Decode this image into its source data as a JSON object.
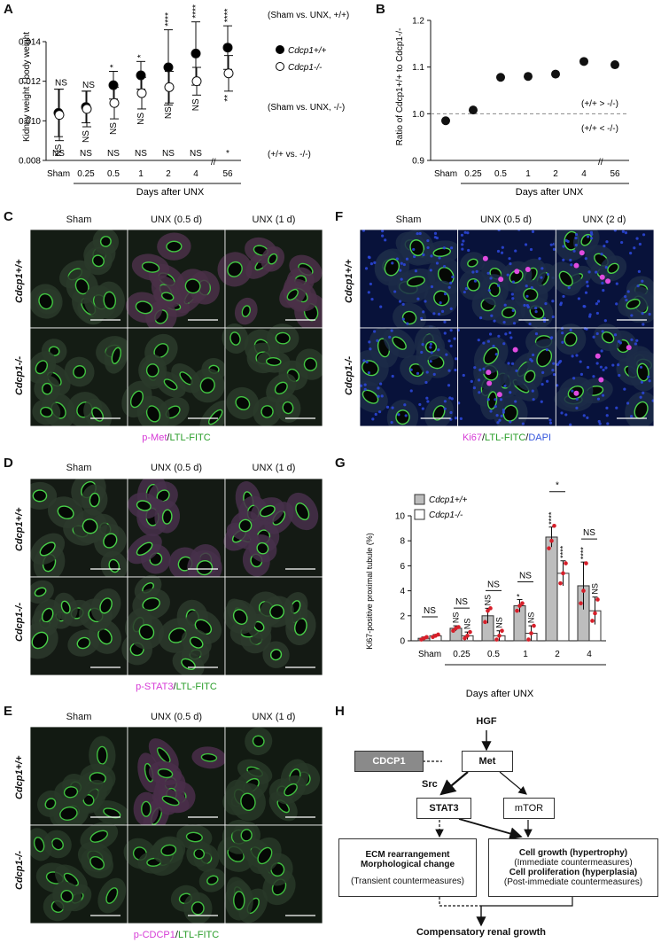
{
  "panels": {
    "A": "A",
    "B": "B",
    "C": "C",
    "D": "D",
    "E": "E",
    "F": "F",
    "G": "G",
    "H": "H"
  },
  "chart_a": {
    "type": "scatter",
    "ylabel": "Kidney weight / body weight",
    "xlabel": "Days after UNX",
    "categories": [
      "Sham",
      "0.25",
      "0.5",
      "1",
      "2",
      "4",
      "56"
    ],
    "ylim": [
      0.008,
      0.014
    ],
    "yticks": [
      "0.008",
      "0.010",
      "0.012",
      "0.014"
    ],
    "series": [
      {
        "name": "Cdcp1+/+",
        "fill": "#000000",
        "values": [
          0.0104,
          0.0107,
          0.0118,
          0.0123,
          0.0127,
          0.0134,
          0.0137
        ],
        "err": [
          0.0012,
          0.0008,
          0.0007,
          0.0007,
          0.0019,
          0.0016,
          0.0011
        ]
      },
      {
        "name": "Cdcp1-/-",
        "fill": "#ffffff",
        "values": [
          0.0103,
          0.0106,
          0.0109,
          0.0114,
          0.0117,
          0.012,
          0.0124
        ],
        "err": [
          0.0013,
          0.0009,
          0.0008,
          0.0008,
          0.0008,
          0.0007,
          0.0009
        ]
      }
    ],
    "sig_top": [
      "NS",
      "NS",
      "*",
      "*",
      "****",
      "****",
      "****"
    ],
    "sig_mid": [
      "NS",
      "NS",
      "NS",
      "NS",
      "NS",
      "NS",
      "**"
    ],
    "sig_bottom": [
      "NS",
      "NS",
      "NS",
      "NS",
      "NS",
      "NS",
      "*"
    ],
    "row_labels": [
      "(Sham vs. UNX, +/+)",
      "(Sham vs. UNX, -/-)",
      "(+/+ vs. -/-)"
    ]
  },
  "chart_b": {
    "type": "scatter",
    "ylabel": "Ratio of Cdcp1+/+ to Cdcp1-/-",
    "xlabel": "Days after UNX",
    "categories": [
      "Sham",
      "0.25",
      "0.5",
      "1",
      "2",
      "4",
      "56"
    ],
    "values": [
      0.985,
      1.008,
      1.078,
      1.08,
      1.085,
      1.112,
      1.105
    ],
    "ylim": [
      0.9,
      1.2
    ],
    "yticks": [
      "0.9",
      "1.0",
      "1.1",
      "1.2"
    ],
    "ref_line": 1.0,
    "annot_above": "(+/+ > -/-)",
    "annot_below": "(+/+ < -/-)"
  },
  "panel_c": {
    "cols": [
      "Sham",
      "UNX (0.5 d)",
      "UNX (1 d)"
    ],
    "rows": [
      "Cdcp1+/+",
      "Cdcp1-/-"
    ],
    "stain_a": "p-Met",
    "sep": "/",
    "stain_b": "LTL-FITC"
  },
  "panel_d": {
    "cols": [
      "Sham",
      "UNX (0.5 d)",
      "UNX (1 d)"
    ],
    "rows": [
      "Cdcp1+/+",
      "Cdcp1-/-"
    ],
    "stain_a": "p-STAT3",
    "sep": "/",
    "stain_b": "LTL-FITC"
  },
  "panel_e": {
    "cols": [
      "Sham",
      "UNX (0.5 d)",
      "UNX (1 d)"
    ],
    "rows": [
      "Cdcp1+/+",
      "Cdcp1-/-"
    ],
    "stain_a": "p-CDCP1",
    "sep": "/",
    "stain_b": "LTL-FITC"
  },
  "panel_f": {
    "cols": [
      "Sham",
      "UNX (0.5 d)",
      "UNX (2 d)"
    ],
    "rows": [
      "Cdcp1+/+",
      "Cdcp1-/-"
    ],
    "stain_a": "Ki67",
    "sep": "/",
    "stain_b": "LTL-FITC",
    "sep2": "/",
    "stain_c": "DAPI"
  },
  "chart_g": {
    "type": "bar",
    "ylabel": "Ki67-positive proximal tubule (%)",
    "xlabel": "Days after UNX",
    "categories": [
      "Sham",
      "0.25",
      "0.5",
      "1",
      "2",
      "4"
    ],
    "ylim": [
      0,
      10
    ],
    "yticks": [
      "0",
      "2",
      "4",
      "6",
      "8",
      "10"
    ],
    "series": [
      {
        "name": "Cdcp1+/+",
        "fill": "#bdbdbd",
        "values": [
          0.2,
          1.0,
          2.0,
          2.8,
          8.3,
          4.4
        ],
        "err": [
          0.1,
          0.2,
          0.6,
          0.5,
          0.8,
          1.9
        ],
        "points": [
          [
            0.1,
            0.2,
            0.3
          ],
          [
            0.8,
            1.0,
            1.1
          ],
          [
            1.5,
            2.4,
            2.6
          ],
          [
            2.4,
            2.8,
            3.0
          ],
          [
            7.4,
            8.0,
            9.2
          ],
          [
            3.0,
            4.0,
            6.2
          ]
        ]
      },
      {
        "name": "Cdcp1-/-",
        "fill": "#ffffff",
        "values": [
          0.4,
          0.4,
          0.4,
          0.6,
          5.4,
          2.4
        ],
        "err": [
          0.1,
          0.3,
          0.4,
          0.6,
          1.0,
          1.1
        ],
        "points": [
          [
            0.3,
            0.4,
            0.5
          ],
          [
            0.2,
            0.4,
            0.7
          ],
          [
            0.1,
            0.4,
            0.8
          ],
          [
            0.1,
            0.6,
            1.2
          ],
          [
            4.6,
            5.4,
            6.2
          ],
          [
            1.6,
            2.2,
            3.3
          ]
        ]
      }
    ],
    "sig_pairs": [
      "NS",
      "NS",
      "NS",
      "NS",
      "*",
      "NS"
    ],
    "sig_a": [
      "",
      "NS",
      "NS",
      "*",
      "****",
      "****"
    ],
    "sig_b": [
      "",
      "NS",
      "NS",
      "NS",
      "****",
      "NS"
    ]
  },
  "diagram_h": {
    "hgf": "HGF",
    "cdcp1": "CDCP1",
    "met": "Met",
    "src": "Src",
    "stat3": "STAT3",
    "mtor": "mTOR",
    "ecm_title": "ECM rearrangement",
    "ecm_sub": "Morphological change",
    "ecm_note": "(Transient countermeasures)",
    "growth_title": "Cell growth (hypertrophy)",
    "growth_note": "(Immediate countermeasures)",
    "prolif_title": "Cell proliferation (hyperplasia)",
    "prolif_note": "(Post-immediate countermeasures)",
    "result": "Compensatory renal growth"
  }
}
